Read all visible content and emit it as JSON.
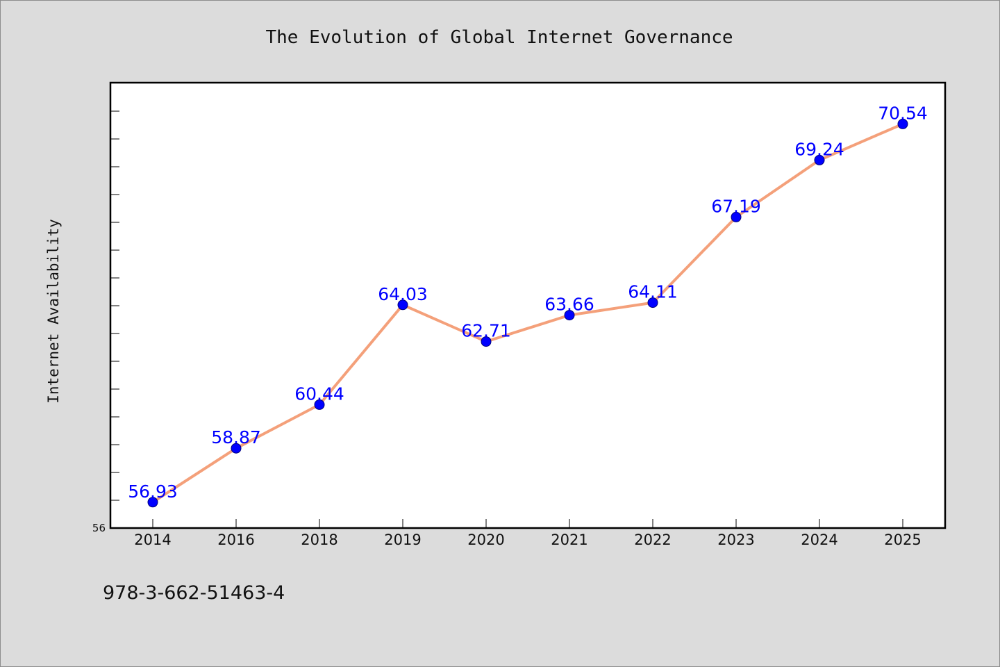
{
  "chart_data": {
    "type": "line",
    "title": "The Evolution of Global Internet Governance",
    "xlabel": "",
    "ylabel": "Internet Availability",
    "categories": [
      "2014",
      "2016",
      "2018",
      "2019",
      "2020",
      "2021",
      "2022",
      "2023",
      "2024",
      "2025"
    ],
    "series": [
      {
        "values": [
          56.93,
          58.87,
          60.44,
          64.03,
          62.71,
          63.66,
          64.11,
          67.19,
          69.24,
          70.54
        ],
        "color": "#f4a07a",
        "marker_color": "#0000ff"
      }
    ],
    "data_labels": [
      "56.93",
      "58.87",
      "60.44",
      "64.03",
      "62.71",
      "63.66",
      "64.11",
      "67.19",
      "69.24",
      "70.54"
    ],
    "ylim": [
      56,
      72
    ],
    "yticks_labeled": [
      "56"
    ],
    "grid": false,
    "legend": "none"
  },
  "footer": {
    "isbn": "978-3-662-51463-4"
  }
}
